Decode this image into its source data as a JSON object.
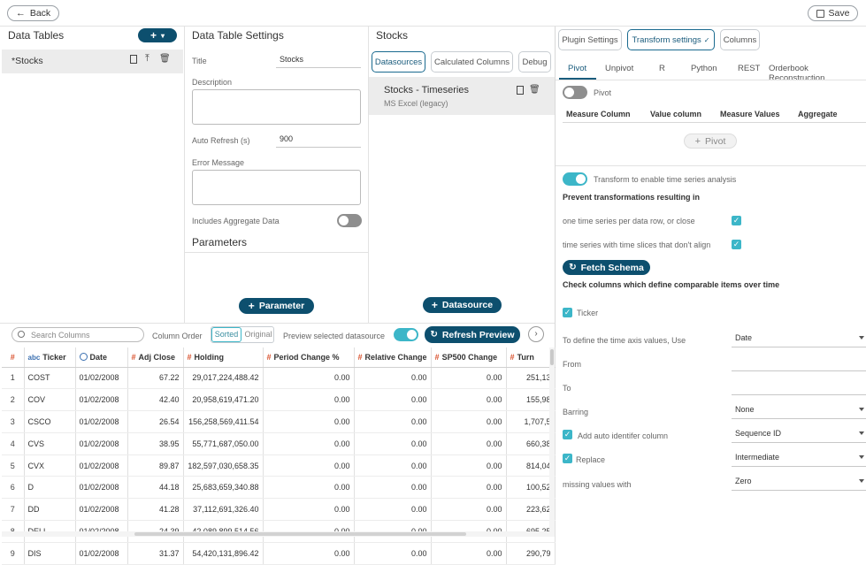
{
  "header": {
    "back_label": "Back",
    "save_label": "Save"
  },
  "data_tables": {
    "title": "Data Tables",
    "items": [
      {
        "label": "*Stocks"
      }
    ]
  },
  "settings": {
    "title": "Data Table Settings",
    "title_label": "Title",
    "title_value": "Stocks",
    "description_label": "Description",
    "auto_refresh_label": "Auto Refresh (s)",
    "auto_refresh_value": "900",
    "error_message_label": "Error Message",
    "aggregate_label": "Includes Aggregate Data",
    "parameters_title": "Parameters",
    "parameter_button": "Parameter"
  },
  "stocks": {
    "title": "Stocks",
    "tabs": [
      "Datasources",
      "Calculated Columns",
      "Debug"
    ],
    "datasource": {
      "name": "Stocks - Timeseries",
      "type": "MS Excel (legacy)"
    },
    "datasource_button": "Datasource"
  },
  "transform": {
    "top_tabs": [
      "Plugin Settings",
      "Transform settings",
      "Columns"
    ],
    "sub_tabs": [
      "Pivot",
      "Unpivot",
      "R",
      "Python",
      "REST",
      "Orderbook Reconstruction"
    ],
    "pivot_toggle_label": "Pivot",
    "pivot_headers": [
      "Measure Column",
      "Value column",
      "Measure Values",
      "Aggregate"
    ],
    "pivot_button": "Pivot",
    "timeseries_label": "Transform to enable time series analysis",
    "prevent_title": "Prevent transformations resulting in",
    "prevent_1": "one time series per data row, or close",
    "prevent_2": "time series with time slices that don't align",
    "fetch_schema": "Fetch Schema",
    "check_title": "Check columns which define comparable items over time",
    "ticker_label": "Ticker",
    "time_axis_label": "To define the time axis values, Use",
    "time_axis_value": "Date",
    "from_label": "From",
    "to_label": "To",
    "barring_label": "Barring",
    "barring_value": "None",
    "auto_id_label": "Add auto identifer column",
    "auto_id_value": "Sequence ID",
    "replace_label": "Replace",
    "replace_value": "Intermediate",
    "missing_label": "missing values with",
    "missing_value": "Zero"
  },
  "toolbar": {
    "search_placeholder": "Search Columns",
    "column_order_label": "Column Order",
    "sorted_label": "Sorted",
    "original_label": "Original",
    "preview_label": "Preview selected datasource",
    "refresh_label": "Refresh Preview"
  },
  "grid": {
    "headers": [
      "#",
      "Ticker",
      "Date",
      "Adj Close",
      "Holding",
      "Period Change %",
      "Relative Change",
      "SP500 Change",
      "Turn"
    ],
    "header_icons": [
      "#",
      "abc",
      "clock",
      "#",
      "#",
      "#",
      "#",
      "#",
      "#"
    ],
    "rows": [
      [
        "1",
        "COST",
        "01/02/2008",
        "67.22",
        "29,017,224,488.42",
        "0.00",
        "0.00",
        "0.00",
        "251,13"
      ],
      [
        "2",
        "COV",
        "01/02/2008",
        "42.40",
        "20,958,619,471.20",
        "0.00",
        "0.00",
        "0.00",
        "155,98"
      ],
      [
        "3",
        "CSCO",
        "01/02/2008",
        "26.54",
        "156,258,569,411.54",
        "0.00",
        "0.00",
        "0.00",
        "1,707,5"
      ],
      [
        "4",
        "CVS",
        "01/02/2008",
        "38.95",
        "55,771,687,050.00",
        "0.00",
        "0.00",
        "0.00",
        "660,38"
      ],
      [
        "5",
        "CVX",
        "01/02/2008",
        "89.87",
        "182,597,030,658.35",
        "0.00",
        "0.00",
        "0.00",
        "814,04"
      ],
      [
        "6",
        "D",
        "01/02/2008",
        "44.18",
        "25,683,659,340.88",
        "0.00",
        "0.00",
        "0.00",
        "100,52"
      ],
      [
        "7",
        "DD",
        "01/02/2008",
        "41.28",
        "37,112,691,326.40",
        "0.00",
        "0.00",
        "0.00",
        "223,62"
      ],
      [
        "8",
        "DELL",
        "01/02/2008",
        "24.39",
        "42,089,899,514.56",
        "0.00",
        "0.00",
        "0.00",
        "695,25"
      ],
      [
        "9",
        "DIS",
        "01/02/2008",
        "31.37",
        "54,420,131,896.42",
        "0.00",
        "0.00",
        "0.00",
        "290,79"
      ]
    ]
  },
  "colors": {
    "accent_dark": "#0d4f6e",
    "toggle_on": "#3cb6c8",
    "hash_icon": "#d9502c"
  }
}
